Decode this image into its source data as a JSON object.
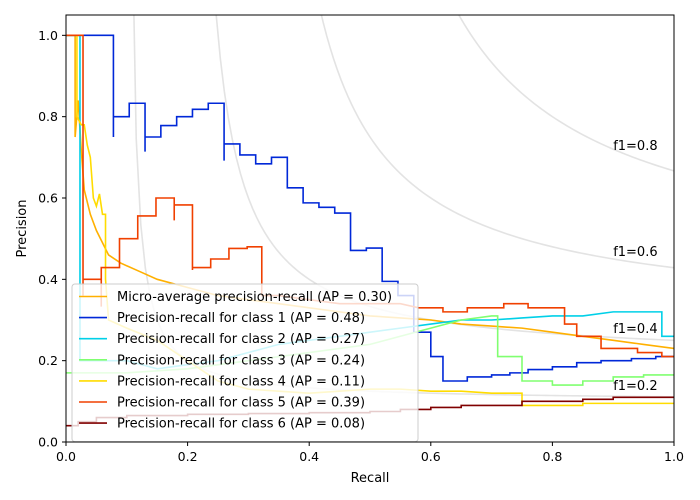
{
  "chart_data": {
    "type": "line",
    "title": "",
    "xlabel": "Recall",
    "ylabel": "Precision",
    "xlim": [
      0.0,
      1.0
    ],
    "ylim": [
      0.0,
      1.05
    ],
    "x_ticks": [
      "0.0",
      "0.2",
      "0.4",
      "0.6",
      "0.8",
      "1.0"
    ],
    "y_ticks": [
      "0.0",
      "0.2",
      "0.4",
      "0.6",
      "0.8",
      "1.0"
    ],
    "grid": false,
    "legend_position": "lower-left",
    "iso_f1": [
      {
        "f1": 0.2,
        "label": "f1=0.2",
        "label_y": 0.14
      },
      {
        "f1": 0.4,
        "label": "f1=0.4",
        "label_y": 0.28
      },
      {
        "f1": 0.6,
        "label": "f1=0.6",
        "label_y": 0.47
      },
      {
        "f1": 0.8,
        "label": "f1=0.8",
        "label_y": 0.73
      }
    ],
    "series": [
      {
        "name": "Micro-average precision-recall (AP = 0.30)",
        "color": "#ffb000",
        "points": [
          [
            0.0,
            1.0
          ],
          [
            0.015,
            1.0
          ],
          [
            0.015,
            0.75
          ],
          [
            0.02,
            0.84
          ],
          [
            0.025,
            0.72
          ],
          [
            0.03,
            0.62
          ],
          [
            0.04,
            0.56
          ],
          [
            0.05,
            0.52
          ],
          [
            0.07,
            0.46
          ],
          [
            0.09,
            0.44
          ],
          [
            0.12,
            0.42
          ],
          [
            0.15,
            0.4
          ],
          [
            0.2,
            0.38
          ],
          [
            0.25,
            0.36
          ],
          [
            0.3,
            0.35
          ],
          [
            0.35,
            0.34
          ],
          [
            0.4,
            0.33
          ],
          [
            0.45,
            0.32
          ],
          [
            0.5,
            0.31
          ],
          [
            0.55,
            0.305
          ],
          [
            0.6,
            0.3
          ],
          [
            0.65,
            0.29
          ],
          [
            0.7,
            0.285
          ],
          [
            0.75,
            0.28
          ],
          [
            0.8,
            0.27
          ],
          [
            0.85,
            0.26
          ],
          [
            0.9,
            0.25
          ],
          [
            0.95,
            0.24
          ],
          [
            1.0,
            0.23
          ]
        ]
      },
      {
        "name": "Precision-recall for class 1 (AP = 0.48)",
        "color": "#0028d8",
        "points": [
          [
            0.0,
            1.0
          ],
          [
            0.078,
            1.0
          ],
          [
            0.078,
            0.75
          ],
          [
            0.078,
            0.8
          ],
          [
            0.104,
            0.8
          ],
          [
            0.104,
            0.833
          ],
          [
            0.13,
            0.833
          ],
          [
            0.13,
            0.714
          ],
          [
            0.13,
            0.75
          ],
          [
            0.156,
            0.75
          ],
          [
            0.156,
            0.778
          ],
          [
            0.182,
            0.778
          ],
          [
            0.182,
            0.8
          ],
          [
            0.208,
            0.8
          ],
          [
            0.208,
            0.818
          ],
          [
            0.234,
            0.818
          ],
          [
            0.234,
            0.833
          ],
          [
            0.26,
            0.833
          ],
          [
            0.26,
            0.692
          ],
          [
            0.26,
            0.733
          ],
          [
            0.286,
            0.733
          ],
          [
            0.286,
            0.706
          ],
          [
            0.312,
            0.706
          ],
          [
            0.312,
            0.684
          ],
          [
            0.338,
            0.684
          ],
          [
            0.338,
            0.7
          ],
          [
            0.364,
            0.7
          ],
          [
            0.364,
            0.625
          ],
          [
            0.39,
            0.625
          ],
          [
            0.39,
            0.588
          ],
          [
            0.416,
            0.588
          ],
          [
            0.416,
            0.577
          ],
          [
            0.442,
            0.577
          ],
          [
            0.442,
            0.563
          ],
          [
            0.468,
            0.563
          ],
          [
            0.468,
            0.471
          ],
          [
            0.494,
            0.471
          ],
          [
            0.494,
            0.477
          ],
          [
            0.52,
            0.477
          ],
          [
            0.52,
            0.395
          ],
          [
            0.546,
            0.395
          ],
          [
            0.546,
            0.36
          ],
          [
            0.572,
            0.36
          ],
          [
            0.572,
            0.27
          ],
          [
            0.6,
            0.27
          ],
          [
            0.6,
            0.21
          ],
          [
            0.62,
            0.21
          ],
          [
            0.62,
            0.15
          ],
          [
            0.66,
            0.15
          ],
          [
            0.66,
            0.16
          ],
          [
            0.7,
            0.16
          ],
          [
            0.7,
            0.165
          ],
          [
            0.73,
            0.165
          ],
          [
            0.73,
            0.17
          ],
          [
            0.76,
            0.17
          ],
          [
            0.76,
            0.178
          ],
          [
            0.8,
            0.178
          ],
          [
            0.8,
            0.185
          ],
          [
            0.84,
            0.185
          ],
          [
            0.84,
            0.195
          ],
          [
            0.88,
            0.195
          ],
          [
            0.88,
            0.2
          ],
          [
            0.93,
            0.2
          ],
          [
            0.93,
            0.205
          ],
          [
            0.97,
            0.205
          ],
          [
            0.97,
            0.21
          ],
          [
            1.0,
            0.21
          ]
        ]
      },
      {
        "name": "Precision-recall for class 2 (AP = 0.27)",
        "color": "#00d0e8",
        "points": [
          [
            0.0,
            1.0
          ],
          [
            0.023,
            1.0
          ],
          [
            0.023,
            0.5
          ],
          [
            0.023,
            0.2
          ],
          [
            0.06,
            0.2
          ],
          [
            0.1,
            0.2
          ],
          [
            0.15,
            0.18
          ],
          [
            0.2,
            0.19
          ],
          [
            0.25,
            0.2
          ],
          [
            0.3,
            0.22
          ],
          [
            0.35,
            0.24
          ],
          [
            0.4,
            0.25
          ],
          [
            0.45,
            0.26
          ],
          [
            0.5,
            0.27
          ],
          [
            0.55,
            0.28
          ],
          [
            0.6,
            0.29
          ],
          [
            0.65,
            0.3
          ],
          [
            0.7,
            0.3
          ],
          [
            0.75,
            0.305
          ],
          [
            0.8,
            0.31
          ],
          [
            0.85,
            0.31
          ],
          [
            0.9,
            0.32
          ],
          [
            0.95,
            0.32
          ],
          [
            0.98,
            0.32
          ],
          [
            0.98,
            0.26
          ],
          [
            1.0,
            0.26
          ]
        ]
      },
      {
        "name": "Precision-recall for class 3 (AP = 0.24)",
        "color": "#80ff70",
        "points": [
          [
            0.0,
            0.17
          ],
          [
            0.1,
            0.17
          ],
          [
            0.2,
            0.18
          ],
          [
            0.3,
            0.2
          ],
          [
            0.4,
            0.22
          ],
          [
            0.5,
            0.24
          ],
          [
            0.55,
            0.26
          ],
          [
            0.6,
            0.28
          ],
          [
            0.65,
            0.3
          ],
          [
            0.7,
            0.31
          ],
          [
            0.71,
            0.31
          ],
          [
            0.71,
            0.21
          ],
          [
            0.75,
            0.21
          ],
          [
            0.75,
            0.15
          ],
          [
            0.8,
            0.15
          ],
          [
            0.8,
            0.14
          ],
          [
            0.85,
            0.14
          ],
          [
            0.85,
            0.15
          ],
          [
            0.9,
            0.15
          ],
          [
            0.9,
            0.16
          ],
          [
            0.95,
            0.16
          ],
          [
            0.95,
            0.165
          ],
          [
            1.0,
            0.165
          ]
        ]
      },
      {
        "name": "Precision-recall for class 4 (AP = 0.11)",
        "color": "#ffdc00",
        "points": [
          [
            0.0,
            1.0
          ],
          [
            0.018,
            1.0
          ],
          [
            0.018,
            0.8
          ],
          [
            0.025,
            0.78
          ],
          [
            0.03,
            0.78
          ],
          [
            0.035,
            0.73
          ],
          [
            0.04,
            0.7
          ],
          [
            0.045,
            0.6
          ],
          [
            0.05,
            0.58
          ],
          [
            0.055,
            0.61
          ],
          [
            0.06,
            0.56
          ],
          [
            0.065,
            0.56
          ],
          [
            0.065,
            0.4
          ],
          [
            0.07,
            0.3
          ],
          [
            0.1,
            0.28
          ],
          [
            0.15,
            0.25
          ],
          [
            0.2,
            0.2
          ],
          [
            0.25,
            0.15
          ],
          [
            0.3,
            0.13
          ],
          [
            0.35,
            0.125
          ],
          [
            0.4,
            0.12
          ],
          [
            0.45,
            0.125
          ],
          [
            0.5,
            0.13
          ],
          [
            0.55,
            0.13
          ],
          [
            0.6,
            0.125
          ],
          [
            0.65,
            0.125
          ],
          [
            0.7,
            0.12
          ],
          [
            0.75,
            0.12
          ],
          [
            0.75,
            0.09
          ],
          [
            0.85,
            0.09
          ],
          [
            0.85,
            0.095
          ],
          [
            1.0,
            0.095
          ]
        ]
      },
      {
        "name": "Precision-recall for class 5 (AP = 0.39)",
        "color": "#f04000",
        "points": [
          [
            0.0,
            1.0
          ],
          [
            0.028,
            1.0
          ],
          [
            0.028,
            0.36
          ],
          [
            0.028,
            0.4
          ],
          [
            0.058,
            0.4
          ],
          [
            0.058,
            0.333
          ],
          [
            0.058,
            0.429
          ],
          [
            0.088,
            0.429
          ],
          [
            0.088,
            0.5
          ],
          [
            0.118,
            0.5
          ],
          [
            0.118,
            0.556
          ],
          [
            0.148,
            0.556
          ],
          [
            0.148,
            0.6
          ],
          [
            0.178,
            0.6
          ],
          [
            0.178,
            0.545
          ],
          [
            0.178,
            0.583
          ],
          [
            0.208,
            0.583
          ],
          [
            0.208,
            0.423
          ],
          [
            0.208,
            0.429
          ],
          [
            0.238,
            0.429
          ],
          [
            0.238,
            0.45
          ],
          [
            0.268,
            0.45
          ],
          [
            0.268,
            0.476
          ],
          [
            0.298,
            0.476
          ],
          [
            0.298,
            0.48
          ],
          [
            0.322,
            0.48
          ],
          [
            0.322,
            0.36
          ],
          [
            0.35,
            0.36
          ],
          [
            0.4,
            0.35
          ],
          [
            0.45,
            0.34
          ],
          [
            0.5,
            0.34
          ],
          [
            0.55,
            0.34
          ],
          [
            0.58,
            0.33
          ],
          [
            0.62,
            0.33
          ],
          [
            0.62,
            0.32
          ],
          [
            0.66,
            0.32
          ],
          [
            0.66,
            0.33
          ],
          [
            0.72,
            0.33
          ],
          [
            0.72,
            0.34
          ],
          [
            0.76,
            0.34
          ],
          [
            0.76,
            0.33
          ],
          [
            0.82,
            0.33
          ],
          [
            0.82,
            0.29
          ],
          [
            0.84,
            0.29
          ],
          [
            0.84,
            0.26
          ],
          [
            0.88,
            0.26
          ],
          [
            0.88,
            0.23
          ],
          [
            0.94,
            0.23
          ],
          [
            0.94,
            0.22
          ],
          [
            0.98,
            0.22
          ],
          [
            0.98,
            0.21
          ],
          [
            1.0,
            0.21
          ]
        ]
      },
      {
        "name": "Precision-recall for class 6 (AP = 0.08)",
        "color": "#800000",
        "points": [
          [
            0.0,
            0.04
          ],
          [
            0.02,
            0.04
          ],
          [
            0.02,
            0.05
          ],
          [
            0.05,
            0.05
          ],
          [
            0.05,
            0.06
          ],
          [
            0.1,
            0.06
          ],
          [
            0.1,
            0.065
          ],
          [
            0.2,
            0.065
          ],
          [
            0.2,
            0.068
          ],
          [
            0.3,
            0.068
          ],
          [
            0.3,
            0.07
          ],
          [
            0.4,
            0.07
          ],
          [
            0.4,
            0.072
          ],
          [
            0.5,
            0.072
          ],
          [
            0.5,
            0.075
          ],
          [
            0.55,
            0.075
          ],
          [
            0.55,
            0.08
          ],
          [
            0.6,
            0.08
          ],
          [
            0.6,
            0.085
          ],
          [
            0.65,
            0.085
          ],
          [
            0.65,
            0.09
          ],
          [
            0.75,
            0.09
          ],
          [
            0.75,
            0.1
          ],
          [
            0.85,
            0.1
          ],
          [
            0.85,
            0.105
          ],
          [
            0.9,
            0.105
          ],
          [
            0.9,
            0.11
          ],
          [
            1.0,
            0.11
          ]
        ]
      }
    ]
  }
}
